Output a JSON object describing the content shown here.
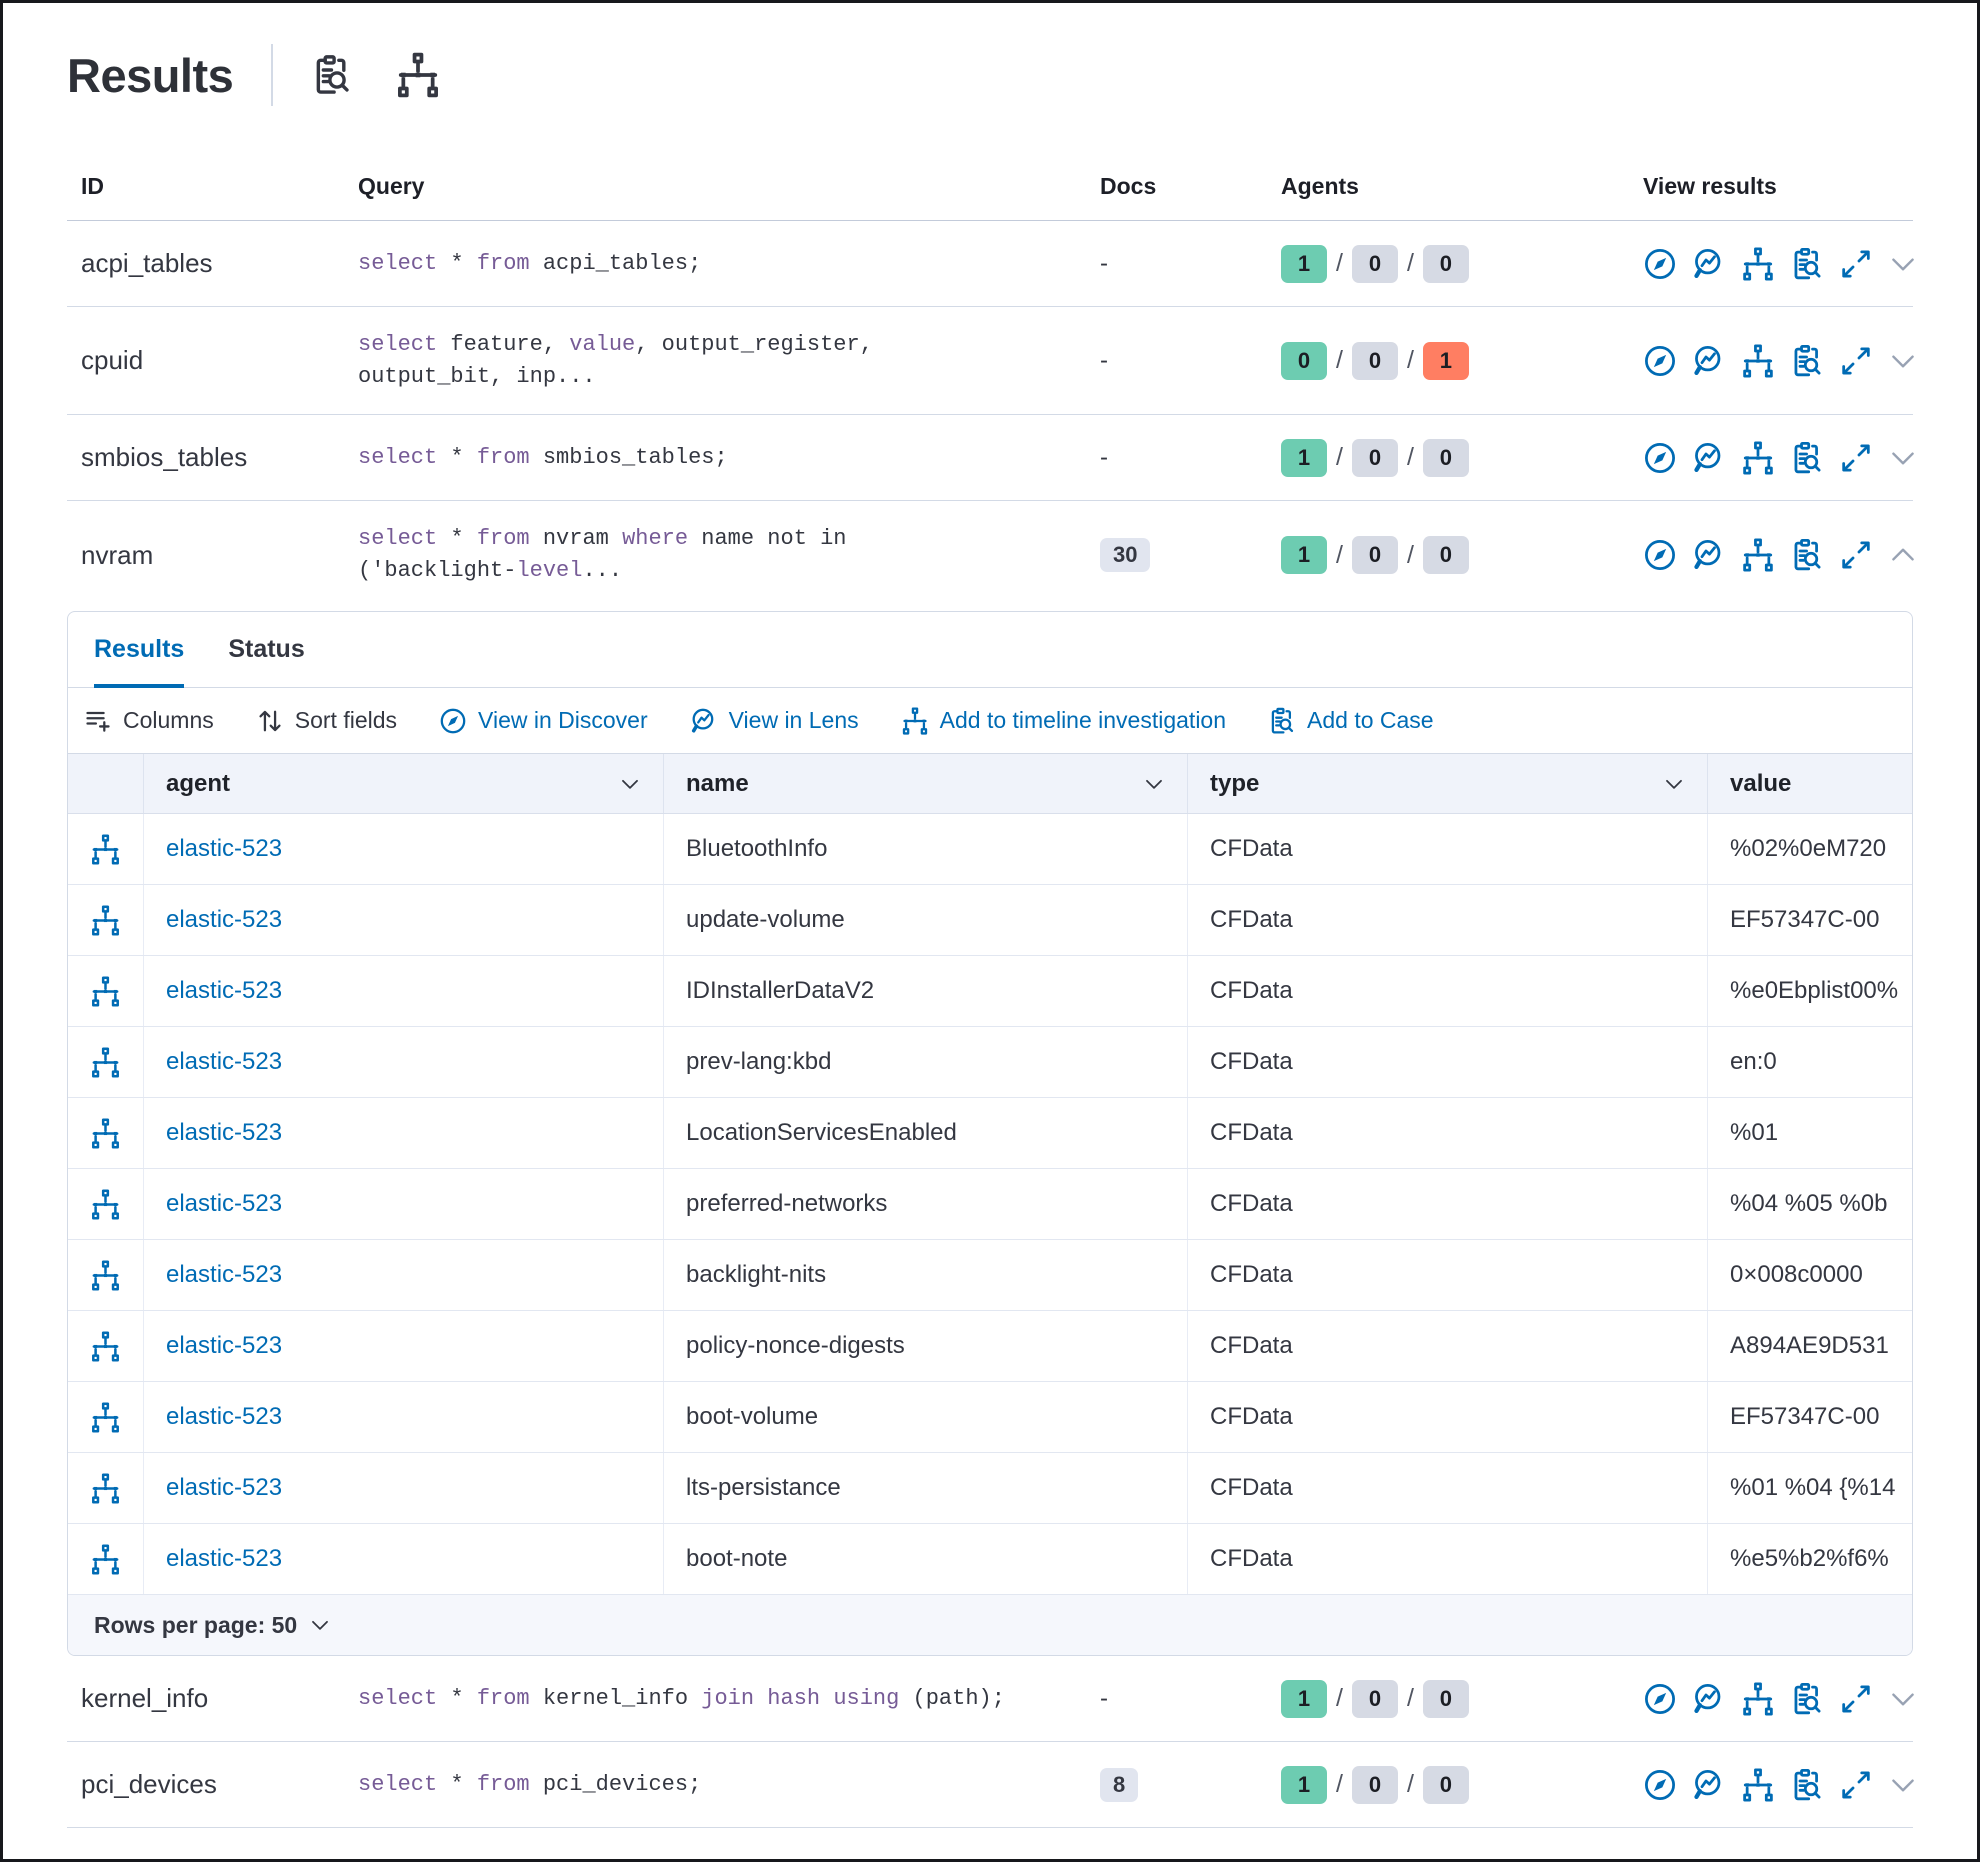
{
  "title": "Results",
  "header": {
    "icons": [
      "attach-to-case-icon",
      "timeline-icon"
    ]
  },
  "colors": {
    "primary_blue": "#006bb4",
    "keyword_purple": "#765b96",
    "badge_green": "#6dccb1",
    "badge_gray": "#d6dae4",
    "badge_red": "#ff7e62"
  },
  "queries_table": {
    "columns": {
      "id": "ID",
      "query": "Query",
      "docs": "Docs",
      "agents": "Agents",
      "view_results": "View results"
    },
    "view_results_icons": [
      "view-in-discover-icon",
      "view-in-lens-icon",
      "add-to-timeline-icon",
      "add-to-case-icon",
      "expand-icon"
    ],
    "rows": [
      {
        "id": "acpi_tables",
        "query": [
          [
            "select",
            1
          ],
          [
            " * ",
            0
          ],
          [
            "from",
            1
          ],
          [
            " acpi_tables;",
            0
          ]
        ],
        "docs": "-",
        "docs_badge": false,
        "agents": [
          1,
          0,
          0
        ],
        "expanded": false
      },
      {
        "id": "cpuid",
        "query": [
          [
            "select",
            1
          ],
          [
            " feature, ",
            0
          ],
          [
            "value",
            1
          ],
          [
            ", output_register,\n",
            0
          ],
          [
            "output_bit, inp...",
            0
          ]
        ],
        "docs": "-",
        "docs_badge": false,
        "agents": [
          0,
          0,
          1
        ],
        "expanded": false
      },
      {
        "id": "smbios_tables",
        "query": [
          [
            "select",
            1
          ],
          [
            " * ",
            0
          ],
          [
            "from",
            1
          ],
          [
            " smbios_tables;",
            0
          ]
        ],
        "docs": "-",
        "docs_badge": false,
        "agents": [
          1,
          0,
          0
        ],
        "expanded": false
      },
      {
        "id": "nvram",
        "query": [
          [
            "select",
            1
          ],
          [
            " * ",
            0
          ],
          [
            "from",
            1
          ],
          [
            " nvram ",
            0
          ],
          [
            "where",
            1
          ],
          [
            " name not in\n('backlight-",
            0
          ],
          [
            "level",
            1
          ],
          [
            "...",
            0
          ]
        ],
        "docs": "30",
        "docs_badge": true,
        "agents": [
          1,
          0,
          0
        ],
        "expanded": true
      },
      {
        "id": "kernel_info",
        "query": [
          [
            "select",
            1
          ],
          [
            " * ",
            0
          ],
          [
            "from",
            1
          ],
          [
            " kernel_info ",
            0
          ],
          [
            "join",
            1
          ],
          [
            " ",
            0
          ],
          [
            "hash",
            1
          ],
          [
            " ",
            0
          ],
          [
            "using",
            1
          ],
          [
            " (path);",
            0
          ]
        ],
        "docs": "-",
        "docs_badge": false,
        "agents": [
          1,
          0,
          0
        ],
        "expanded": false
      },
      {
        "id": "pci_devices",
        "query": [
          [
            "select",
            1
          ],
          [
            " * ",
            0
          ],
          [
            "from",
            1
          ],
          [
            " pci_devices;",
            0
          ]
        ],
        "docs": "8",
        "docs_badge": true,
        "agents": [
          1,
          0,
          0
        ],
        "expanded": false
      }
    ]
  },
  "results_panel": {
    "tabs": [
      {
        "label": "Results",
        "active": true
      },
      {
        "label": "Status",
        "active": false
      }
    ],
    "toolbar": [
      {
        "label": "Columns",
        "icon": "columns-icon",
        "color": "dark"
      },
      {
        "label": "Sort fields",
        "icon": "sort-fields-icon",
        "color": "dark"
      },
      {
        "label": "View in Discover",
        "icon": "view-in-discover-icon",
        "color": "blue"
      },
      {
        "label": "View in Lens",
        "icon": "view-in-lens-icon",
        "color": "blue"
      },
      {
        "label": "Add to timeline investigation",
        "icon": "add-to-timeline-icon",
        "color": "blue"
      },
      {
        "label": "Add to Case",
        "icon": "add-to-case-icon",
        "color": "blue"
      }
    ],
    "grid": {
      "columns": [
        "agent",
        "name",
        "type",
        "value"
      ],
      "rows": [
        {
          "agent": "elastic-523",
          "name": "BluetoothInfo",
          "type": "CFData",
          "value": "%02%0eM720"
        },
        {
          "agent": "elastic-523",
          "name": "update-volume",
          "type": "CFData",
          "value": "EF57347C-00"
        },
        {
          "agent": "elastic-523",
          "name": "IDInstallerDataV2",
          "type": "CFData",
          "value": "%e0Ebplist00%"
        },
        {
          "agent": "elastic-523",
          "name": "prev-lang:kbd",
          "type": "CFData",
          "value": "en:0"
        },
        {
          "agent": "elastic-523",
          "name": "LocationServicesEnabled",
          "type": "CFData",
          "value": "%01"
        },
        {
          "agent": "elastic-523",
          "name": "preferred-networks",
          "type": "CFData",
          "value": "%04 %05 %0b"
        },
        {
          "agent": "elastic-523",
          "name": "backlight-nits",
          "type": "CFData",
          "value": "0×008c0000"
        },
        {
          "agent": "elastic-523",
          "name": "policy-nonce-digests",
          "type": "CFData",
          "value": "A894AE9D531"
        },
        {
          "agent": "elastic-523",
          "name": "boot-volume",
          "type": "CFData",
          "value": "EF57347C-00"
        },
        {
          "agent": "elastic-523",
          "name": "lts-persistance",
          "type": "CFData",
          "value": "%01 %04 {%14"
        },
        {
          "agent": "elastic-523",
          "name": "boot-note",
          "type": "CFData",
          "value": "%e5%b2%f6%"
        }
      ],
      "pagination": {
        "label": "Rows per page: 50"
      }
    }
  }
}
